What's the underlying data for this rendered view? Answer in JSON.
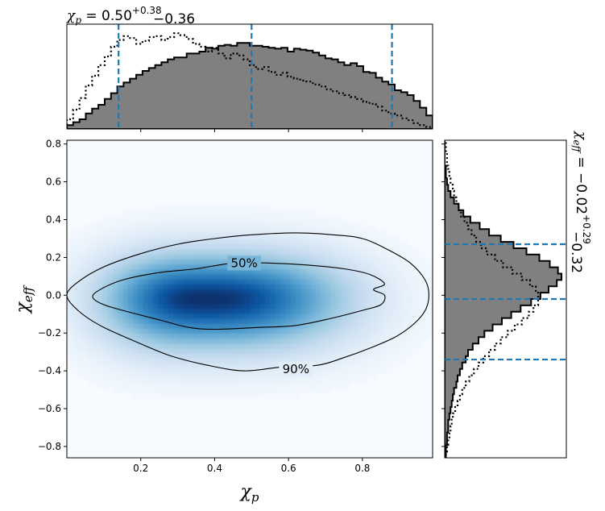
{
  "chart_data": {
    "type": "heatmap",
    "layout": "corner-plot with marginal histograms",
    "x_name": "χ",
    "x_sub": "p",
    "y_name": "χ",
    "y_sub": "eff",
    "xlim": [
      0.0,
      0.99
    ],
    "ylim": [
      -0.86,
      0.82
    ],
    "x_ticks": [
      {
        "v": 0.2,
        "label": "0.2"
      },
      {
        "v": 0.4,
        "label": "0.4"
      },
      {
        "v": 0.6,
        "label": "0.6"
      },
      {
        "v": 0.8,
        "label": "0.8"
      }
    ],
    "y_ticks": [
      {
        "v": 0.8,
        "label": "0.8"
      },
      {
        "v": 0.6,
        "label": "0.6"
      },
      {
        "v": 0.4,
        "label": "0.4"
      },
      {
        "v": 0.2,
        "label": "0.2"
      },
      {
        "v": 0.0,
        "label": "0.0"
      },
      {
        "v": -0.2,
        "label": "−0.2"
      },
      {
        "v": -0.4,
        "label": "−0.4"
      },
      {
        "v": -0.6,
        "label": "−0.6"
      },
      {
        "v": -0.8,
        "label": "−0.8"
      }
    ],
    "colormap": "Blues",
    "density_peak": {
      "x": 0.37,
      "y": -0.02
    },
    "contours": [
      {
        "label": "50%",
        "label_pos": {
          "x": 0.48,
          "y": 0.17
        },
        "points": [
          [
            0.07,
            -0.01
          ],
          [
            0.09,
            0.03
          ],
          [
            0.15,
            0.08
          ],
          [
            0.25,
            0.12
          ],
          [
            0.35,
            0.14
          ],
          [
            0.45,
            0.17
          ],
          [
            0.55,
            0.17
          ],
          [
            0.65,
            0.16
          ],
          [
            0.75,
            0.14
          ],
          [
            0.82,
            0.11
          ],
          [
            0.86,
            0.06
          ],
          [
            0.83,
            0.03
          ],
          [
            0.86,
            0.0
          ],
          [
            0.85,
            -0.05
          ],
          [
            0.8,
            -0.08
          ],
          [
            0.72,
            -0.12
          ],
          [
            0.62,
            -0.16
          ],
          [
            0.52,
            -0.17
          ],
          [
            0.4,
            -0.18
          ],
          [
            0.33,
            -0.17
          ],
          [
            0.25,
            -0.13
          ],
          [
            0.17,
            -0.09
          ],
          [
            0.1,
            -0.05
          ]
        ]
      },
      {
        "label": "90%",
        "label_pos": {
          "x": 0.62,
          "y": -0.39
        },
        "points": [
          [
            0.0,
            0.0
          ],
          [
            0.03,
            0.07
          ],
          [
            0.1,
            0.15
          ],
          [
            0.2,
            0.22
          ],
          [
            0.3,
            0.27
          ],
          [
            0.4,
            0.3
          ],
          [
            0.5,
            0.32
          ],
          [
            0.62,
            0.33
          ],
          [
            0.72,
            0.32
          ],
          [
            0.8,
            0.3
          ],
          [
            0.87,
            0.24
          ],
          [
            0.93,
            0.17
          ],
          [
            0.97,
            0.08
          ],
          [
            0.98,
            0.0
          ],
          [
            0.97,
            -0.08
          ],
          [
            0.94,
            -0.15
          ],
          [
            0.89,
            -0.22
          ],
          [
            0.82,
            -0.28
          ],
          [
            0.75,
            -0.33
          ],
          [
            0.68,
            -0.37
          ],
          [
            0.58,
            -0.38
          ],
          [
            0.48,
            -0.4
          ],
          [
            0.38,
            -0.37
          ],
          [
            0.28,
            -0.32
          ],
          [
            0.18,
            -0.24
          ],
          [
            0.09,
            -0.16
          ],
          [
            0.03,
            -0.08
          ]
        ]
      }
    ],
    "top_title": {
      "prefix": "χ",
      "sub": "p",
      "value": " = 0.50",
      "plus": "+0.38",
      "minus": "−0.36"
    },
    "right_title": {
      "prefix": "χ",
      "sub": "eff",
      "value": " = −0.02",
      "plus": "+0.29",
      "minus": "−0.32"
    },
    "x_quantiles": [
      0.14,
      0.5,
      0.88
    ],
    "y_quantiles": [
      -0.34,
      -0.02,
      0.27
    ],
    "x_hist": {
      "range": [
        0.0,
        0.99
      ],
      "filled": [
        0.04,
        0.07,
        0.1,
        0.16,
        0.21,
        0.25,
        0.31,
        0.37,
        0.44,
        0.48,
        0.52,
        0.56,
        0.6,
        0.63,
        0.66,
        0.69,
        0.72,
        0.74,
        0.74,
        0.78,
        0.78,
        0.8,
        0.84,
        0.83,
        0.86,
        0.87,
        0.86,
        0.89,
        0.89,
        0.86,
        0.86,
        0.85,
        0.84,
        0.83,
        0.84,
        0.8,
        0.83,
        0.82,
        0.81,
        0.79,
        0.76,
        0.73,
        0.72,
        0.69,
        0.66,
        0.68,
        0.65,
        0.59,
        0.58,
        0.53,
        0.49,
        0.46,
        0.4,
        0.38,
        0.35,
        0.29,
        0.22,
        0.14
      ],
      "dotted": [
        0.1,
        0.2,
        0.32,
        0.45,
        0.55,
        0.66,
        0.75,
        0.85,
        0.92,
        0.96,
        0.94,
        0.88,
        0.91,
        0.95,
        0.96,
        0.92,
        0.95,
        0.99,
        0.97,
        0.93,
        0.88,
        0.85,
        0.8,
        0.84,
        0.78,
        0.73,
        0.78,
        0.76,
        0.72,
        0.66,
        0.62,
        0.64,
        0.59,
        0.56,
        0.58,
        0.54,
        0.52,
        0.5,
        0.49,
        0.46,
        0.44,
        0.41,
        0.39,
        0.37,
        0.35,
        0.33,
        0.31,
        0.28,
        0.26,
        0.23,
        0.19,
        0.16,
        0.14,
        0.11,
        0.09,
        0.06,
        0.04,
        0.02
      ]
    },
    "y_hist": {
      "range": [
        -0.86,
        0.82
      ],
      "filled": [
        0.01,
        0.01,
        0.02,
        0.02,
        0.03,
        0.03,
        0.04,
        0.05,
        0.06,
        0.07,
        0.08,
        0.1,
        0.11,
        0.13,
        0.15,
        0.18,
        0.2,
        0.24,
        0.29,
        0.34,
        0.41,
        0.49,
        0.57,
        0.65,
        0.74,
        0.82,
        0.89,
        0.96,
        1.0,
        0.97,
        0.9,
        0.81,
        0.7,
        0.59,
        0.48,
        0.38,
        0.3,
        0.22,
        0.16,
        0.12,
        0.08,
        0.05,
        0.03,
        0.02,
        0.01,
        0.01,
        0.0,
        0.0,
        0.0,
        0.0
      ],
      "dotted": [
        0.01,
        0.02,
        0.03,
        0.04,
        0.05,
        0.06,
        0.07,
        0.09,
        0.11,
        0.13,
        0.15,
        0.18,
        0.21,
        0.25,
        0.29,
        0.33,
        0.38,
        0.43,
        0.48,
        0.54,
        0.6,
        0.66,
        0.72,
        0.76,
        0.8,
        0.8,
        0.78,
        0.73,
        0.66,
        0.58,
        0.5,
        0.43,
        0.36,
        0.31,
        0.27,
        0.23,
        0.2,
        0.17,
        0.14,
        0.12,
        0.1,
        0.08,
        0.07,
        0.05,
        0.04,
        0.03,
        0.02,
        0.02,
        0.01,
        0.01
      ]
    }
  },
  "colors": {
    "hist_fill": "#808080",
    "hist_edge": "#000000",
    "quantile": "#1f77b4",
    "contour": "#000000",
    "density_light": "#f7fbff",
    "density_dark": "#08306b"
  }
}
